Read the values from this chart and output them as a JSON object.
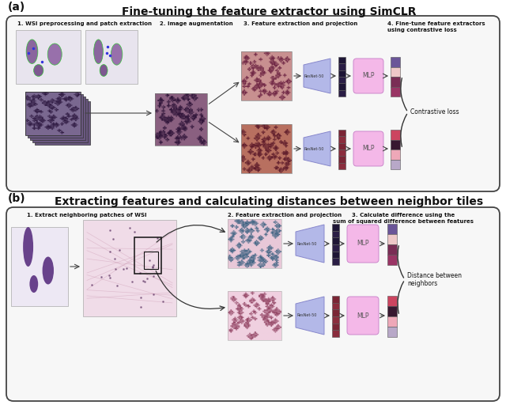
{
  "title_a": "Fine-tuning the feature extractor using SimCLR",
  "title_b": "Extracting features and calculating distances between neighbor tiles",
  "label_a": "(a)",
  "label_b": "(b)",
  "panel_a": {
    "step1": "1. WSI preprocessing and patch extraction",
    "step2": "2. Image augmentation",
    "step3": "3. Feature extraction and projection",
    "step4": "4. Fine-tune feature extractors\nusing contrastive loss",
    "annotation": "Contrastive loss"
  },
  "panel_b": {
    "step1": "1. Extract neighboring patches of WSI",
    "step2": "2. Feature extraction and projection",
    "step3": "3. Calculate difference using the\nsum of squared difference between features",
    "annotation": "Distance between\nneighbors"
  },
  "colors": {
    "background": "#ffffff",
    "resnet_block": "#b3b8e8",
    "mlp_block": "#f4b8e8",
    "fvec_dark": [
      "#1e1535",
      "#2a1d45",
      "#1e1535",
      "#2a1d45",
      "#1e1535",
      "#2a1d45"
    ],
    "fvec_red": [
      "#7a2535",
      "#8a2d3d",
      "#7a2535",
      "#8a2d3d",
      "#7a2535",
      "#8a2d3d"
    ],
    "out_top": [
      "#6a5598",
      "#eec8c8",
      "#7a2d55",
      "#9a3565"
    ],
    "out_bot": [
      "#cc4560",
      "#381830",
      "#eea8b8",
      "#b8a8c8"
    ],
    "out_b_top": [
      "#6a5598",
      "#eec8c8",
      "#7a2d55",
      "#9a3565"
    ],
    "out_b_bot": [
      "#cc4560",
      "#381830",
      "#eea8b8",
      "#b8a8c8"
    ],
    "arrow": "#444444",
    "border": "#444444",
    "text": "#111111",
    "panel_bg": "#f7f7f7"
  },
  "figsize": [
    6.4,
    5.12
  ],
  "dpi": 100
}
